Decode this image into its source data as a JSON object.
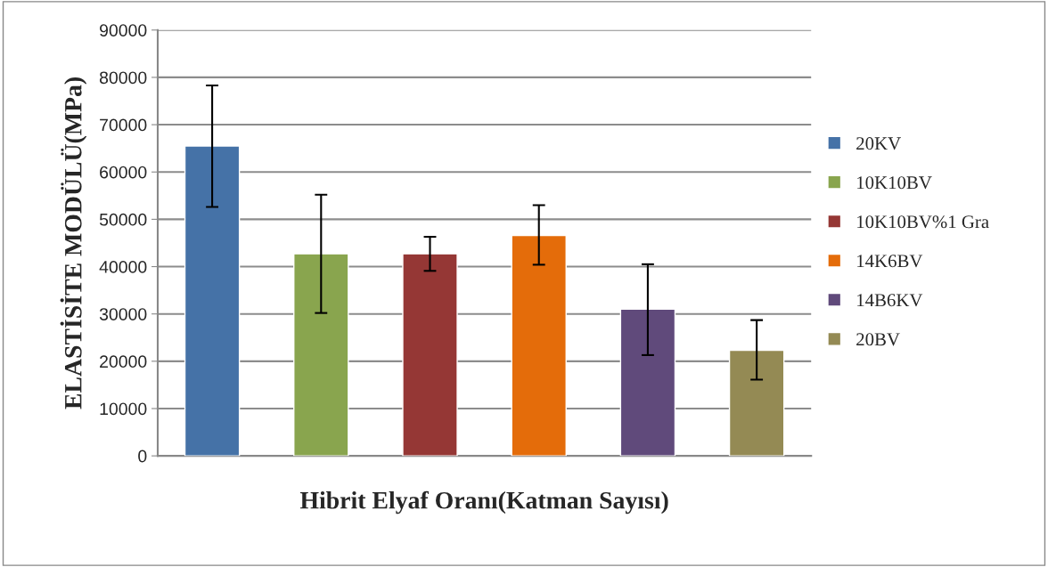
{
  "chart_data": {
    "type": "bar",
    "xlabel": "Hibrit Elyaf Oranı(Katman Sayısı)",
    "ylabel": "ELASTİSİTE MODÜLÜ(MPa)",
    "categories": [
      null
    ],
    "series": [
      {
        "name": "20KV",
        "color": "#4572a7",
        "values": [
          65500
        ],
        "errors": [
          [
            52600,
            78300
          ]
        ]
      },
      {
        "name": "10K10BV",
        "color": "#89a54e",
        "values": [
          42700
        ],
        "errors": [
          [
            30200,
            55200
          ]
        ]
      },
      {
        "name": "10K10BV%1 Gra",
        "color": "#953735",
        "values": [
          42700
        ],
        "errors": [
          [
            39100,
            46300
          ]
        ]
      },
      {
        "name": "14K6BV",
        "color": "#e46c0a",
        "values": [
          46600
        ],
        "errors": [
          [
            40400,
            53000
          ]
        ]
      },
      {
        "name": "14B6KV",
        "color": "#604a7b",
        "values": [
          31000
        ],
        "errors": [
          [
            21300,
            40500
          ]
        ]
      },
      {
        "name": "20BV",
        "color": "#948a54",
        "values": [
          22300
        ],
        "errors": [
          [
            16100,
            28700
          ]
        ]
      }
    ],
    "ylim": [
      0,
      90000
    ],
    "yticks": [
      0,
      10000,
      20000,
      30000,
      40000,
      50000,
      60000,
      70000,
      80000,
      90000
    ],
    "grid": "y",
    "legend": "right"
  }
}
